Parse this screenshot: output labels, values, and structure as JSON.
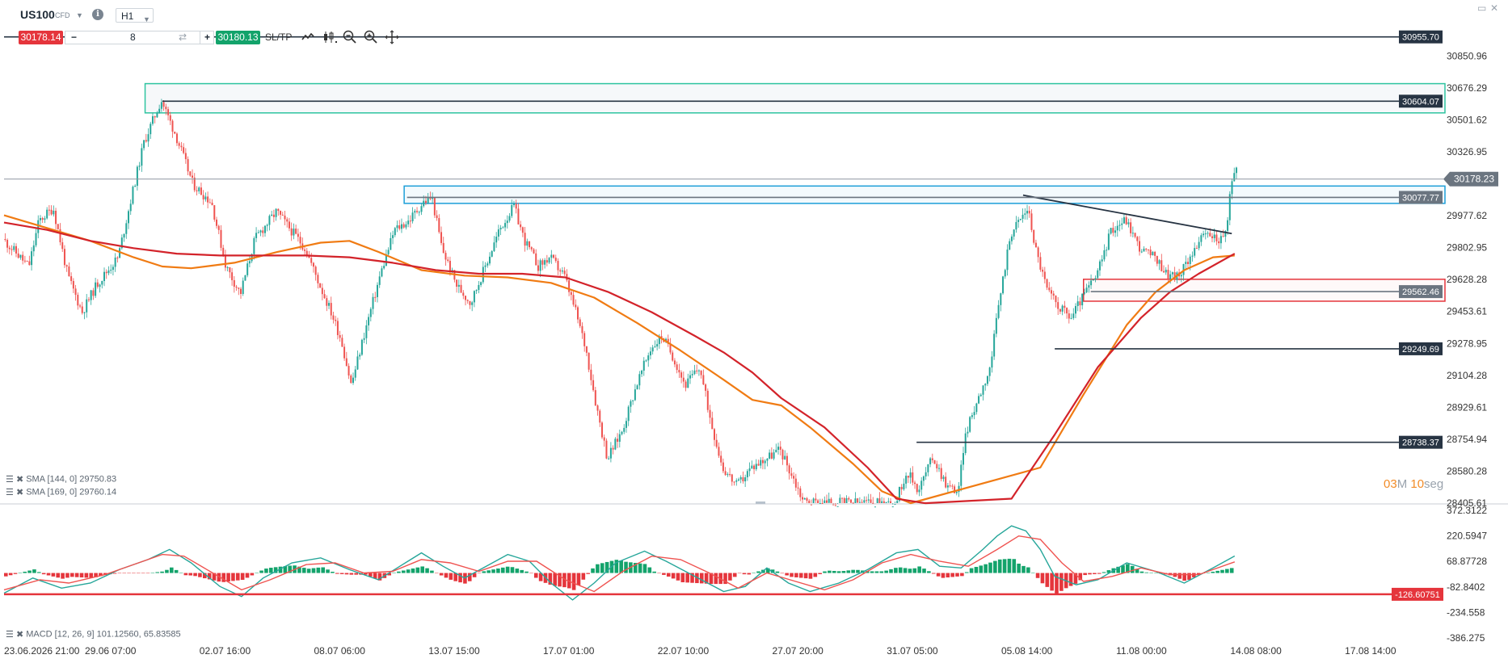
{
  "toolbar": {
    "symbol": "US100",
    "instrument_type": "CFD",
    "timeframe": "H1",
    "sell_price": "30178.14",
    "quantity": "8",
    "buy_price": "30180.13",
    "sltp_label": "SL/TP",
    "icons": [
      "dropdown-caret-icon",
      "info-icon",
      "sync-icon",
      "line-chart-icon",
      "candles-icon",
      "zoom-out-icon",
      "zoom-in-icon",
      "crosshair-move-icon",
      "minimize-icon",
      "close-icon"
    ]
  },
  "countdown": {
    "minutes": "03",
    "minutes_unit": "M",
    "seconds": "10",
    "seconds_unit": "seg"
  },
  "colors": {
    "bull": "#26a69a",
    "bear": "#ef5350",
    "sma144": "#f07b13",
    "sma169": "#d3232a",
    "macd_line": "#26a69a",
    "signal_line": "#ef5350",
    "hist_pos": "#13a36b",
    "hist_neg": "#e5353c",
    "resistance_zone": "#2ec4a0",
    "support_zone": "#e5353c",
    "blue_zone": "#1c9ed8",
    "level_tag": "#273443",
    "grey_tag": "#6b7580"
  },
  "chart_data": [
    {
      "type": "candlestick",
      "symbol": "US100",
      "timeframe": "H1",
      "ylim": [
        28405.61,
        31025.0
      ],
      "y_ticks": [
        "30850.96",
        "30676.29",
        "30501.62",
        "30326.95",
        "29977.62",
        "29802.95",
        "29628.28",
        "29453.61",
        "29278.95",
        "29104.28",
        "28929.61",
        "28754.94",
        "28580.28",
        "28405.61"
      ],
      "x_ticks": [
        "23.06.2026 21:00",
        "29.06 07:00",
        "02.07 16:00",
        "08.07 06:00",
        "13.07 15:00",
        "17.07 01:00",
        "22.07 10:00",
        "27.07 20:00",
        "31.07 05:00",
        "05.08 14:00",
        "11.08 00:00",
        "14.08 08:00",
        "17.08 14:00"
      ],
      "current_price": "30178.23",
      "levels": [
        {
          "label": "30955.70",
          "value": 30955.7,
          "style": "dark"
        },
        {
          "label": "30604.07",
          "value": 30604.07,
          "style": "dark"
        },
        {
          "label": "30077.77",
          "value": 30077.77,
          "style": "grey"
        },
        {
          "label": "29562.46",
          "value": 29562.46,
          "style": "grey"
        },
        {
          "label": "29249.69",
          "value": 29249.69,
          "style": "dark"
        },
        {
          "label": "28738.37",
          "value": 28738.37,
          "style": "dark"
        }
      ],
      "zones": [
        {
          "name": "resistance",
          "from": 30540,
          "to": 30700,
          "color": "green"
        },
        {
          "name": "breakout",
          "from": 30045,
          "to": 30140,
          "color": "blue"
        },
        {
          "name": "support",
          "from": 29510,
          "to": 29630,
          "color": "red"
        }
      ],
      "trendline": {
        "from": [
          0.708,
          30090
        ],
        "to": [
          0.853,
          29880
        ]
      },
      "indicators": [
        {
          "name": "SMA [144, 0]",
          "value": "29750.83",
          "color": "orange"
        },
        {
          "name": "SMA [169, 0]",
          "value": "29760.14",
          "color": "red"
        }
      ],
      "price_path": [
        [
          0.0,
          29850
        ],
        [
          0.018,
          29700
        ],
        [
          0.025,
          29950
        ],
        [
          0.035,
          30020
        ],
        [
          0.045,
          29650
        ],
        [
          0.055,
          29450
        ],
        [
          0.065,
          29600
        ],
        [
          0.08,
          29750
        ],
        [
          0.087,
          30000
        ],
        [
          0.098,
          30380
        ],
        [
          0.11,
          30610
        ],
        [
          0.12,
          30420
        ],
        [
          0.132,
          30150
        ],
        [
          0.145,
          30050
        ],
        [
          0.155,
          29700
        ],
        [
          0.165,
          29550
        ],
        [
          0.175,
          29850
        ],
        [
          0.19,
          30000
        ],
        [
          0.2,
          29900
        ],
        [
          0.21,
          29800
        ],
        [
          0.22,
          29600
        ],
        [
          0.228,
          29450
        ],
        [
          0.235,
          29300
        ],
        [
          0.242,
          29050
        ],
        [
          0.25,
          29300
        ],
        [
          0.262,
          29650
        ],
        [
          0.272,
          29900
        ],
        [
          0.282,
          29950
        ],
        [
          0.292,
          30050
        ],
        [
          0.298,
          30080
        ],
        [
          0.305,
          29800
        ],
        [
          0.315,
          29600
        ],
        [
          0.325,
          29500
        ],
        [
          0.335,
          29700
        ],
        [
          0.345,
          29900
        ],
        [
          0.355,
          30030
        ],
        [
          0.362,
          29850
        ],
        [
          0.372,
          29700
        ],
        [
          0.38,
          29750
        ],
        [
          0.39,
          29650
        ],
        [
          0.398,
          29450
        ],
        [
          0.405,
          29250
        ],
        [
          0.412,
          28950
        ],
        [
          0.42,
          28650
        ],
        [
          0.43,
          28800
        ],
        [
          0.44,
          29050
        ],
        [
          0.45,
          29250
        ],
        [
          0.458,
          29320
        ],
        [
          0.466,
          29200
        ],
        [
          0.474,
          29050
        ],
        [
          0.484,
          29150
        ],
        [
          0.492,
          28850
        ],
        [
          0.5,
          28600
        ],
        [
          0.51,
          28500
        ],
        [
          0.52,
          28600
        ],
        [
          0.53,
          28650
        ],
        [
          0.54,
          28700
        ],
        [
          0.548,
          28560
        ],
        [
          0.556,
          28420
        ],
        [
          0.563,
          28410
        ],
        [
          0.62,
          28405
        ],
        [
          0.628,
          28580
        ],
        [
          0.636,
          28480
        ],
        [
          0.646,
          28660
        ],
        [
          0.656,
          28500
        ],
        [
          0.664,
          28470
        ],
        [
          0.668,
          28760
        ],
        [
          0.676,
          28950
        ],
        [
          0.686,
          29150
        ],
        [
          0.692,
          29500
        ],
        [
          0.7,
          29880
        ],
        [
          0.706,
          29950
        ],
        [
          0.712,
          30020
        ],
        [
          0.718,
          29780
        ],
        [
          0.726,
          29560
        ],
        [
          0.734,
          29480
        ],
        [
          0.742,
          29420
        ],
        [
          0.752,
          29560
        ],
        [
          0.76,
          29650
        ],
        [
          0.77,
          29900
        ],
        [
          0.78,
          29960
        ],
        [
          0.79,
          29800
        ],
        [
          0.8,
          29750
        ],
        [
          0.81,
          29650
        ],
        [
          0.818,
          29650
        ],
        [
          0.826,
          29780
        ],
        [
          0.836,
          29880
        ],
        [
          0.844,
          29850
        ],
        [
          0.85,
          29870
        ],
        [
          0.853,
          30150
        ],
        [
          0.857,
          30240
        ]
      ],
      "sma144_path": [
        [
          0.0,
          29980
        ],
        [
          0.03,
          29910
        ],
        [
          0.06,
          29840
        ],
        [
          0.09,
          29750
        ],
        [
          0.11,
          29700
        ],
        [
          0.13,
          29690
        ],
        [
          0.16,
          29720
        ],
        [
          0.19,
          29780
        ],
        [
          0.22,
          29830
        ],
        [
          0.24,
          29840
        ],
        [
          0.26,
          29780
        ],
        [
          0.29,
          29680
        ],
        [
          0.32,
          29650
        ],
        [
          0.35,
          29640
        ],
        [
          0.38,
          29610
        ],
        [
          0.41,
          29530
        ],
        [
          0.44,
          29390
        ],
        [
          0.47,
          29240
        ],
        [
          0.5,
          29080
        ],
        [
          0.52,
          28970
        ],
        [
          0.54,
          28940
        ],
        [
          0.56,
          28820
        ],
        [
          0.59,
          28620
        ],
        [
          0.61,
          28470
        ],
        [
          0.63,
          28405
        ],
        [
          0.72,
          28600
        ],
        [
          0.75,
          29000
        ],
        [
          0.78,
          29380
        ],
        [
          0.8,
          29560
        ],
        [
          0.82,
          29680
        ],
        [
          0.84,
          29750
        ],
        [
          0.855,
          29760
        ]
      ],
      "sma169_path": [
        [
          0.0,
          29940
        ],
        [
          0.03,
          29900
        ],
        [
          0.06,
          29840
        ],
        [
          0.09,
          29800
        ],
        [
          0.12,
          29770
        ],
        [
          0.15,
          29760
        ],
        [
          0.18,
          29760
        ],
        [
          0.21,
          29760
        ],
        [
          0.24,
          29750
        ],
        [
          0.27,
          29720
        ],
        [
          0.3,
          29680
        ],
        [
          0.33,
          29660
        ],
        [
          0.36,
          29660
        ],
        [
          0.39,
          29640
        ],
        [
          0.42,
          29560
        ],
        [
          0.45,
          29450
        ],
        [
          0.48,
          29320
        ],
        [
          0.5,
          29230
        ],
        [
          0.52,
          29120
        ],
        [
          0.54,
          28980
        ],
        [
          0.57,
          28820
        ],
        [
          0.6,
          28600
        ],
        [
          0.62,
          28430
        ],
        [
          0.64,
          28405
        ],
        [
          0.7,
          28430
        ],
        [
          0.73,
          28780
        ],
        [
          0.76,
          29150
        ],
        [
          0.79,
          29420
        ],
        [
          0.81,
          29560
        ],
        [
          0.83,
          29660
        ],
        [
          0.855,
          29770
        ]
      ]
    },
    {
      "type": "bar+line",
      "indicator": "MACD [12, 26, 9]",
      "values_label": "101.12560, 65.83585",
      "ylim": [
        -386.275,
        372.3122
      ],
      "y_ticks": [
        "372.3122",
        "220.5947",
        "68.87728",
        "-82.8402",
        "-234.558",
        "-386.275"
      ],
      "level": {
        "label": "-126.60751",
        "value": -126.60751
      },
      "macd_path": [
        [
          0.0,
          -120
        ],
        [
          0.02,
          -30
        ],
        [
          0.04,
          -90
        ],
        [
          0.06,
          -60
        ],
        [
          0.08,
          20
        ],
        [
          0.1,
          80
        ],
        [
          0.115,
          140
        ],
        [
          0.13,
          60
        ],
        [
          0.15,
          -80
        ],
        [
          0.165,
          -140
        ],
        [
          0.18,
          -30
        ],
        [
          0.2,
          60
        ],
        [
          0.22,
          90
        ],
        [
          0.24,
          20
        ],
        [
          0.26,
          -40
        ],
        [
          0.275,
          40
        ],
        [
          0.29,
          120
        ],
        [
          0.305,
          40
        ],
        [
          0.32,
          -30
        ],
        [
          0.335,
          40
        ],
        [
          0.35,
          110
        ],
        [
          0.365,
          70
        ],
        [
          0.38,
          -60
        ],
        [
          0.395,
          -160
        ],
        [
          0.41,
          -60
        ],
        [
          0.425,
          60
        ],
        [
          0.445,
          130
        ],
        [
          0.46,
          70
        ],
        [
          0.48,
          -20
        ],
        [
          0.5,
          -110
        ],
        [
          0.515,
          -80
        ],
        [
          0.53,
          30
        ],
        [
          0.545,
          -60
        ],
        [
          0.56,
          -110
        ],
        [
          0.58,
          -60
        ],
        [
          0.6,
          20
        ],
        [
          0.62,
          120
        ],
        [
          0.635,
          140
        ],
        [
          0.65,
          40
        ],
        [
          0.665,
          30
        ],
        [
          0.68,
          140
        ],
        [
          0.69,
          220
        ],
        [
          0.7,
          280
        ],
        [
          0.71,
          250
        ],
        [
          0.72,
          140
        ],
        [
          0.73,
          -20
        ],
        [
          0.745,
          -70
        ],
        [
          0.76,
          -40
        ],
        [
          0.78,
          60
        ],
        [
          0.8,
          10
        ],
        [
          0.82,
          -60
        ],
        [
          0.84,
          30
        ],
        [
          0.855,
          101
        ]
      ],
      "signal_path": [
        [
          0.0,
          -100
        ],
        [
          0.025,
          -40
        ],
        [
          0.045,
          -60
        ],
        [
          0.07,
          -10
        ],
        [
          0.09,
          50
        ],
        [
          0.11,
          110
        ],
        [
          0.125,
          100
        ],
        [
          0.145,
          0
        ],
        [
          0.165,
          -100
        ],
        [
          0.185,
          -40
        ],
        [
          0.21,
          50
        ],
        [
          0.23,
          60
        ],
        [
          0.25,
          0
        ],
        [
          0.27,
          10
        ],
        [
          0.29,
          80
        ],
        [
          0.31,
          60
        ],
        [
          0.33,
          10
        ],
        [
          0.35,
          70
        ],
        [
          0.37,
          70
        ],
        [
          0.39,
          -40
        ],
        [
          0.41,
          -110
        ],
        [
          0.43,
          10
        ],
        [
          0.45,
          100
        ],
        [
          0.47,
          80
        ],
        [
          0.49,
          0
        ],
        [
          0.51,
          -90
        ],
        [
          0.53,
          0
        ],
        [
          0.55,
          -50
        ],
        [
          0.57,
          -100
        ],
        [
          0.59,
          -40
        ],
        [
          0.61,
          60
        ],
        [
          0.63,
          110
        ],
        [
          0.65,
          70
        ],
        [
          0.67,
          40
        ],
        [
          0.69,
          140
        ],
        [
          0.705,
          220
        ],
        [
          0.72,
          200
        ],
        [
          0.735,
          60
        ],
        [
          0.75,
          -50
        ],
        [
          0.77,
          -20
        ],
        [
          0.79,
          30
        ],
        [
          0.81,
          -10
        ],
        [
          0.83,
          -10
        ],
        [
          0.855,
          66
        ]
      ]
    }
  ]
}
